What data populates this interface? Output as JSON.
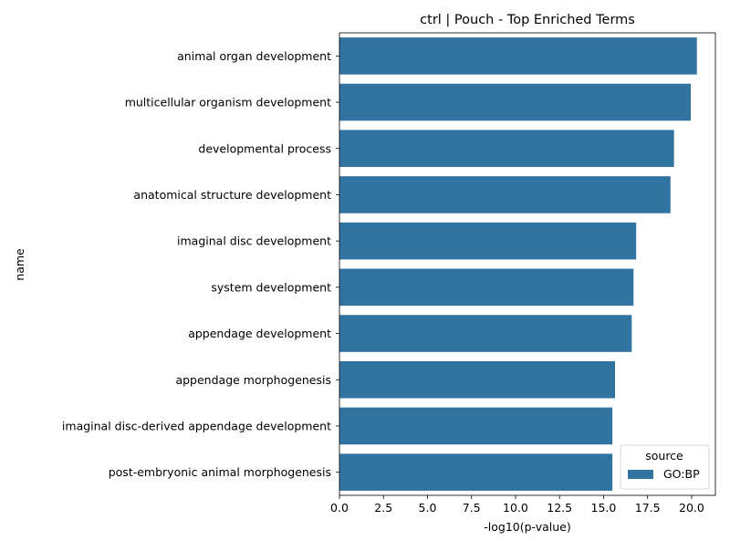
{
  "chart_data": {
    "type": "bar",
    "orientation": "horizontal",
    "title": "ctrl | Pouch - Top Enriched Terms",
    "xlabel": "-log10(p-value)",
    "ylabel": "name",
    "xlim": [
      0,
      21.35
    ],
    "xticks": [
      "0.0",
      "2.5",
      "5.0",
      "7.5",
      "10.0",
      "12.5",
      "15.0",
      "17.5",
      "20.0"
    ],
    "xtick_values": [
      0,
      2.5,
      5,
      7.5,
      10,
      12.5,
      15,
      17.5,
      20
    ],
    "grid": false,
    "categories": [
      "animal organ development",
      "multicellular organism development",
      "developmental process",
      "anatomical structure development",
      "imaginal disc development",
      "system development",
      "appendage development",
      "appendage morphogenesis",
      "imaginal disc-derived appendage development",
      "post-embryonic animal morphogenesis"
    ],
    "series": [
      {
        "name": "GO:BP",
        "color": "#3274a1",
        "values": [
          20.3,
          19.95,
          19.0,
          18.8,
          16.85,
          16.7,
          16.6,
          15.65,
          15.5,
          15.5
        ]
      }
    ],
    "legend": {
      "title": "source",
      "position": "lower-right"
    }
  }
}
